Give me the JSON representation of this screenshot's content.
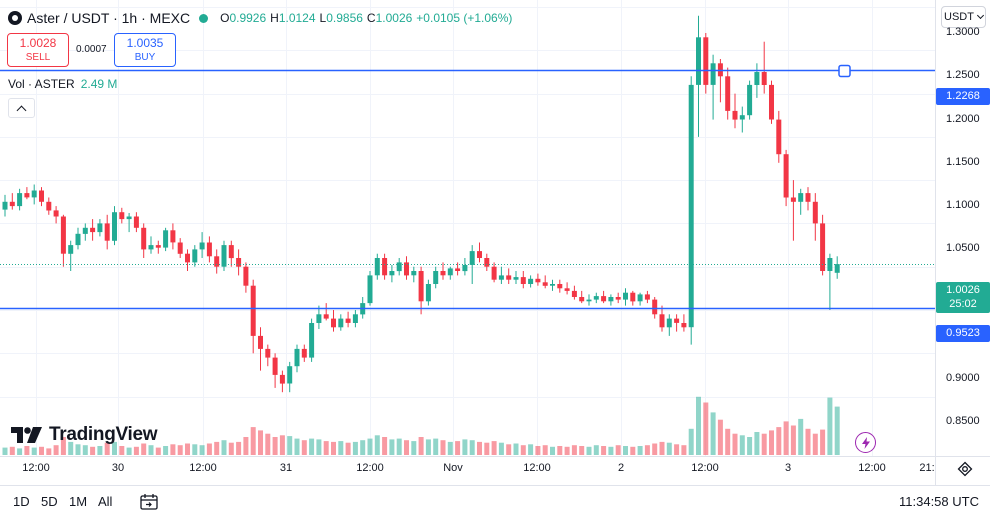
{
  "symbol": {
    "title": "Aster / USDT · 1h · MEXC",
    "ohlc": {
      "o_key": "O",
      "o_val": "0.9926",
      "h_key": "H",
      "h_val": "1.0124",
      "l_key": "L",
      "l_val": "0.9856",
      "c_key": "C",
      "c_val": "1.0026",
      "change": "+0.0105 (+1.06%)"
    }
  },
  "trade": {
    "sell_price": "1.0028",
    "sell_label": "SELL",
    "spread": "0.0007",
    "buy_price": "1.0035",
    "buy_label": "BUY"
  },
  "volume_legend": {
    "label": "Vol · ASTER",
    "value": "2.49 M"
  },
  "currency_selector": "USDT",
  "price_axis": {
    "ticks": [
      "1.3000",
      "1.2500",
      "1.2000",
      "1.1500",
      "1.1000",
      "1.0500",
      "0.9000",
      "0.8500"
    ],
    "upper_line_label": "1.2268",
    "lower_line_label": "0.9523",
    "current_price": "1.0026",
    "countdown": "25:02"
  },
  "time_axis": [
    "12:00",
    "30",
    "12:00",
    "31",
    "12:00",
    "Nov",
    "12:00",
    "2",
    "12:00",
    "3",
    "12:00",
    "21:"
  ],
  "ranges": [
    "1D",
    "5D",
    "1M",
    "All"
  ],
  "clock": "11:34:58 UTC",
  "branding": {
    "name": "TradingView"
  },
  "colors": {
    "up": "#22ab94",
    "down": "#f23645",
    "hline": "#2962ff",
    "alert": "#9c27b0"
  },
  "icons": [
    "exchange-logo-icon",
    "live-dot-icon",
    "collapse-chevron-icon",
    "chevron-down-icon",
    "settings-icon",
    "calendar-icon",
    "alert-lightning-icon",
    "tradingview-logo-icon"
  ],
  "chart_data": {
    "type": "candlestick",
    "interval": "1h",
    "x_start": "Oct 29 08:00",
    "ylim": [
      0.82,
      1.32
    ],
    "hlines": [
      1.2268,
      0.9523
    ],
    "current_price": 1.0026,
    "grid": true,
    "candles": [
      [
        1.066,
        1.083,
        1.058,
        1.075
      ],
      [
        1.075,
        1.085,
        1.066,
        1.07
      ],
      [
        1.07,
        1.09,
        1.065,
        1.085
      ],
      [
        1.085,
        1.092,
        1.078,
        1.08
      ],
      [
        1.08,
        1.095,
        1.072,
        1.088
      ],
      [
        1.088,
        1.092,
        1.07,
        1.075
      ],
      [
        1.075,
        1.08,
        1.06,
        1.065
      ],
      [
        1.065,
        1.07,
        1.05,
        1.058
      ],
      [
        1.058,
        1.06,
        1.0,
        1.015
      ],
      [
        1.015,
        1.03,
        0.995,
        1.025
      ],
      [
        1.025,
        1.045,
        1.02,
        1.038
      ],
      [
        1.038,
        1.05,
        1.03,
        1.045
      ],
      [
        1.045,
        1.055,
        1.03,
        1.04
      ],
      [
        1.04,
        1.055,
        1.035,
        1.05
      ],
      [
        1.05,
        1.06,
        1.02,
        1.03
      ],
      [
        1.03,
        1.07,
        1.025,
        1.063
      ],
      [
        1.063,
        1.068,
        1.05,
        1.055
      ],
      [
        1.055,
        1.062,
        1.04,
        1.058
      ],
      [
        1.058,
        1.063,
        1.04,
        1.045
      ],
      [
        1.045,
        1.05,
        1.01,
        1.02
      ],
      [
        1.02,
        1.035,
        1.015,
        1.025
      ],
      [
        1.025,
        1.03,
        1.015,
        1.022
      ],
      [
        1.022,
        1.045,
        1.018,
        1.042
      ],
      [
        1.042,
        1.05,
        1.02,
        1.028
      ],
      [
        1.028,
        1.033,
        1.01,
        1.015
      ],
      [
        1.015,
        1.02,
        0.995,
        1.005
      ],
      [
        1.005,
        1.025,
        1.0,
        1.02
      ],
      [
        1.02,
        1.04,
        1.01,
        1.028
      ],
      [
        1.028,
        1.035,
        1.005,
        1.012
      ],
      [
        1.012,
        1.02,
        0.992,
        1.0
      ],
      [
        1.0,
        1.03,
        0.995,
        1.025
      ],
      [
        1.025,
        1.03,
        1.0,
        1.01
      ],
      [
        1.01,
        1.02,
        0.99,
        1.0
      ],
      [
        1.0,
        1.005,
        0.97,
        0.978
      ],
      [
        0.978,
        0.985,
        0.9,
        0.92
      ],
      [
        0.92,
        0.93,
        0.88,
        0.905
      ],
      [
        0.905,
        0.91,
        0.885,
        0.895
      ],
      [
        0.895,
        0.9,
        0.86,
        0.875
      ],
      [
        0.875,
        0.88,
        0.855,
        0.865
      ],
      [
        0.865,
        0.89,
        0.855,
        0.885
      ],
      [
        0.885,
        0.91,
        0.878,
        0.905
      ],
      [
        0.905,
        0.91,
        0.89,
        0.895
      ],
      [
        0.895,
        0.94,
        0.89,
        0.935
      ],
      [
        0.935,
        0.955,
        0.928,
        0.945
      ],
      [
        0.945,
        0.958,
        0.938,
        0.94
      ],
      [
        0.94,
        0.95,
        0.925,
        0.93
      ],
      [
        0.93,
        0.945,
        0.926,
        0.94
      ],
      [
        0.94,
        0.948,
        0.93,
        0.935
      ],
      [
        0.935,
        0.95,
        0.93,
        0.945
      ],
      [
        0.945,
        0.965,
        0.94,
        0.958
      ],
      [
        0.958,
        0.995,
        0.955,
        0.99
      ],
      [
        0.99,
        1.015,
        0.985,
        1.01
      ],
      [
        1.01,
        1.015,
        0.985,
        0.99
      ],
      [
        0.99,
        1.002,
        0.982,
        0.995
      ],
      [
        0.995,
        1.01,
        0.99,
        1.005
      ],
      [
        1.005,
        1.012,
        0.985,
        0.99
      ],
      [
        0.99,
        1.0,
        0.982,
        0.995
      ],
      [
        0.995,
        1.0,
        0.945,
        0.96
      ],
      [
        0.96,
        0.985,
        0.955,
        0.98
      ],
      [
        0.98,
        1.0,
        0.975,
        0.995
      ],
      [
        0.995,
        1.005,
        0.985,
        0.99
      ],
      [
        0.99,
        1.0,
        0.985,
        0.998
      ],
      [
        0.998,
        1.005,
        0.99,
        0.995
      ],
      [
        0.995,
        1.01,
        0.99,
        1.002
      ],
      [
        1.002,
        1.025,
        0.98,
        1.018
      ],
      [
        1.018,
        1.028,
        1.005,
        1.01
      ],
      [
        1.01,
        1.015,
        0.995,
        1.0
      ],
      [
        1.0,
        1.005,
        0.982,
        0.985
      ],
      [
        0.985,
        1.0,
        0.98,
        0.99
      ],
      [
        0.99,
        0.998,
        0.98,
        0.985
      ],
      [
        0.985,
        0.995,
        0.98,
        0.988
      ],
      [
        0.988,
        0.995,
        0.975,
        0.98
      ],
      [
        0.98,
        0.99,
        0.976,
        0.986
      ],
      [
        0.986,
        0.992,
        0.978,
        0.982
      ],
      [
        0.982,
        0.99,
        0.975,
        0.978
      ],
      [
        0.978,
        0.985,
        0.972,
        0.98
      ],
      [
        0.98,
        0.985,
        0.97,
        0.975
      ],
      [
        0.975,
        0.982,
        0.968,
        0.972
      ],
      [
        0.972,
        0.978,
        0.962,
        0.965
      ],
      [
        0.965,
        0.972,
        0.958,
        0.96
      ],
      [
        0.96,
        0.968,
        0.955,
        0.962
      ],
      [
        0.962,
        0.97,
        0.958,
        0.966
      ],
      [
        0.966,
        0.972,
        0.958,
        0.96
      ],
      [
        0.96,
        0.968,
        0.955,
        0.965
      ],
      [
        0.965,
        0.97,
        0.958,
        0.962
      ],
      [
        0.962,
        0.975,
        0.955,
        0.97
      ],
      [
        0.97,
        0.972,
        0.955,
        0.96
      ],
      [
        0.96,
        0.97,
        0.955,
        0.968
      ],
      [
        0.968,
        0.972,
        0.958,
        0.962
      ],
      [
        0.962,
        0.965,
        0.94,
        0.945
      ],
      [
        0.945,
        0.955,
        0.925,
        0.93
      ],
      [
        0.93,
        0.945,
        0.92,
        0.94
      ],
      [
        0.94,
        0.945,
        0.925,
        0.935
      ],
      [
        0.935,
        0.945,
        0.925,
        0.93
      ],
      [
        0.93,
        1.22,
        0.91,
        1.21
      ],
      [
        1.21,
        1.29,
        1.15,
        1.265
      ],
      [
        1.265,
        1.27,
        1.2,
        1.21
      ],
      [
        1.21,
        1.245,
        1.17,
        1.235
      ],
      [
        1.235,
        1.24,
        1.19,
        1.22
      ],
      [
        1.22,
        1.23,
        1.17,
        1.18
      ],
      [
        1.18,
        1.2,
        1.16,
        1.17
      ],
      [
        1.17,
        1.185,
        1.155,
        1.175
      ],
      [
        1.175,
        1.215,
        1.17,
        1.21
      ],
      [
        1.21,
        1.235,
        1.195,
        1.225
      ],
      [
        1.225,
        1.26,
        1.2,
        1.21
      ],
      [
        1.21,
        1.215,
        1.165,
        1.17
      ],
      [
        1.17,
        1.18,
        1.12,
        1.13
      ],
      [
        1.13,
        1.135,
        1.07,
        1.08
      ],
      [
        1.08,
        1.1,
        1.03,
        1.075
      ],
      [
        1.075,
        1.09,
        1.06,
        1.085
      ],
      [
        1.085,
        1.092,
        1.065,
        1.075
      ],
      [
        1.075,
        1.085,
        1.03,
        1.05
      ],
      [
        1.05,
        1.06,
        0.99,
        0.995
      ],
      [
        0.995,
        1.015,
        0.95,
        1.01
      ],
      [
        0.993,
        1.012,
        0.986,
        1.003
      ]
    ],
    "volumes": [
      0.9,
      1.0,
      0.8,
      1.1,
      0.9,
      1.0,
      0.8,
      1.2,
      2.2,
      1.6,
      1.3,
      1.2,
      1.0,
      1.1,
      1.5,
      1.6,
      1.1,
      0.9,
      1.0,
      1.4,
      1.2,
      0.9,
      1.1,
      1.3,
      1.2,
      1.4,
      1.3,
      1.2,
      1.4,
      1.6,
      1.8,
      1.5,
      1.6,
      2.2,
      3.4,
      3.0,
      2.6,
      2.2,
      2.4,
      2.3,
      2.0,
      1.8,
      2.0,
      1.9,
      1.7,
      1.6,
      1.7,
      1.5,
      1.6,
      1.8,
      2.0,
      2.4,
      2.2,
      1.9,
      2.0,
      1.8,
      1.7,
      2.2,
      1.9,
      2.0,
      1.8,
      1.6,
      1.7,
      1.9,
      1.8,
      1.6,
      1.5,
      1.7,
      1.5,
      1.3,
      1.4,
      1.2,
      1.3,
      1.1,
      1.2,
      1.0,
      1.1,
      1.0,
      1.2,
      1.1,
      1.0,
      1.2,
      1.1,
      1.0,
      1.2,
      1.1,
      1.0,
      1.1,
      1.2,
      1.4,
      1.6,
      1.5,
      1.3,
      1.2,
      3.2,
      7.1,
      6.4,
      5.2,
      4.3,
      3.2,
      2.6,
      2.4,
      2.2,
      2.8,
      2.6,
      3.0,
      3.4,
      4.1,
      3.6,
      4.4,
      3.2,
      2.6,
      3.1,
      7.0,
      5.9
    ]
  }
}
